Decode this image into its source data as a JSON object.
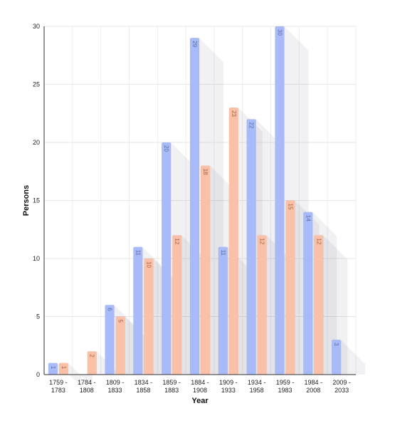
{
  "chart_data": {
    "type": "bar",
    "categories": [
      [
        "1759 -",
        "1783"
      ],
      [
        "1784 -",
        "1808"
      ],
      [
        "1809 -",
        "1833"
      ],
      [
        "1834 -",
        "1858"
      ],
      [
        "1859 -",
        "1883"
      ],
      [
        "1884 -",
        "1908"
      ],
      [
        "1909 -",
        "1933"
      ],
      [
        "1934 -",
        "1958"
      ],
      [
        "1959 -",
        "1983"
      ],
      [
        "1984 -",
        "2008"
      ],
      [
        "2009 -",
        "2033"
      ]
    ],
    "series": [
      {
        "values": [
          1,
          0,
          6,
          11,
          20,
          29,
          11,
          22,
          30,
          14,
          3
        ],
        "color": "#a8bbf8",
        "label_color": "#5a6a9a"
      },
      {
        "values": [
          1,
          2,
          5,
          10,
          12,
          18,
          23,
          12,
          15,
          12,
          0
        ],
        "color": "#fbc0a8",
        "label_color": "#a06040"
      }
    ],
    "xlabel": "Year",
    "ylabel": "Persons",
    "ylim": [
      0,
      30
    ],
    "yticks": [
      0,
      5,
      10,
      15,
      20,
      25,
      30
    ],
    "grid": true
  }
}
